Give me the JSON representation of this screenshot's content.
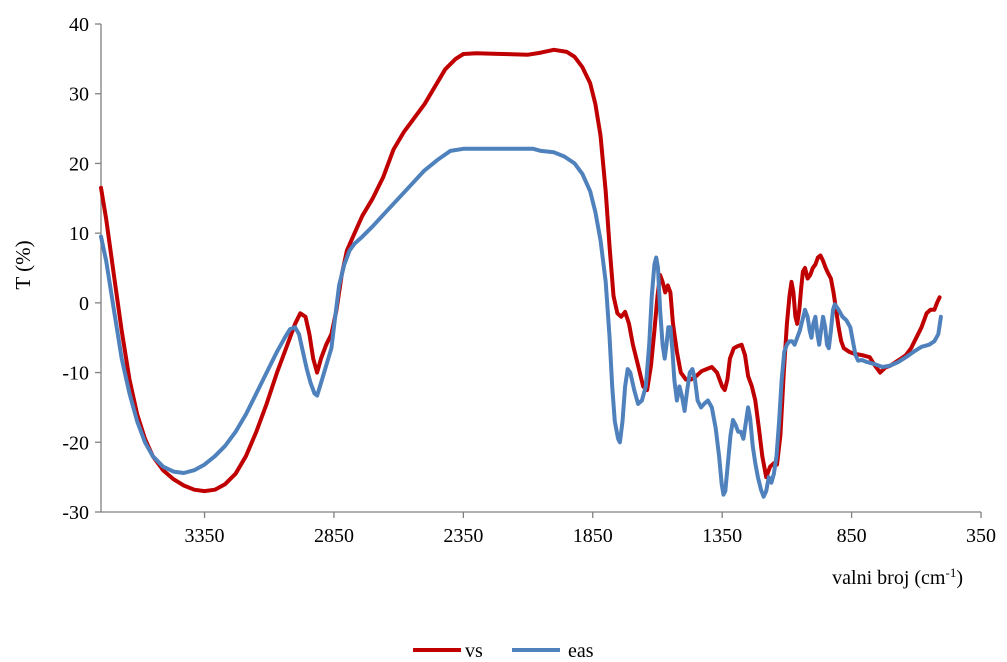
{
  "chart_data": {
    "type": "line",
    "ylabel": "T (%)",
    "xlabel_main": "valni broj (cm",
    "xlabel_sup": "-1",
    "xlabel_end": ")",
    "xlim": [
      3750,
      350
    ],
    "x_reversed": true,
    "ylim": [
      -30,
      40
    ],
    "xticks": [
      3350,
      2850,
      2350,
      1850,
      1350,
      850,
      350
    ],
    "yticks": [
      -30,
      -20,
      -10,
      0,
      10,
      20,
      30,
      40
    ],
    "grid": false,
    "legend": "bottom",
    "series": [
      {
        "name": "vs",
        "color": "#C00000",
        "points": [
          [
            3750,
            16.5
          ],
          [
            3730,
            12
          ],
          [
            3700,
            4
          ],
          [
            3670,
            -4
          ],
          [
            3640,
            -11
          ],
          [
            3610,
            -16
          ],
          [
            3580,
            -19.5
          ],
          [
            3550,
            -22
          ],
          [
            3510,
            -24
          ],
          [
            3470,
            -25.3
          ],
          [
            3430,
            -26.2
          ],
          [
            3390,
            -26.8
          ],
          [
            3350,
            -27
          ],
          [
            3310,
            -26.8
          ],
          [
            3270,
            -26
          ],
          [
            3230,
            -24.5
          ],
          [
            3190,
            -22
          ],
          [
            3150,
            -18.5
          ],
          [
            3110,
            -14.5
          ],
          [
            3070,
            -10
          ],
          [
            3030,
            -6
          ],
          [
            3000,
            -3
          ],
          [
            2980,
            -1.5
          ],
          [
            2960,
            -2
          ],
          [
            2945,
            -4.5
          ],
          [
            2930,
            -8
          ],
          [
            2915,
            -10
          ],
          [
            2900,
            -8
          ],
          [
            2880,
            -6
          ],
          [
            2860,
            -4.5
          ],
          [
            2840,
            -1
          ],
          [
            2820,
            4
          ],
          [
            2800,
            7.5
          ],
          [
            2770,
            10
          ],
          [
            2740,
            12.5
          ],
          [
            2700,
            15
          ],
          [
            2660,
            18
          ],
          [
            2620,
            22
          ],
          [
            2580,
            24.5
          ],
          [
            2540,
            26.5
          ],
          [
            2500,
            28.5
          ],
          [
            2460,
            31
          ],
          [
            2420,
            33.5
          ],
          [
            2380,
            35
          ],
          [
            2350,
            35.7
          ],
          [
            2300,
            35.8
          ],
          [
            2200,
            35.7
          ],
          [
            2100,
            35.6
          ],
          [
            2050,
            35.9
          ],
          [
            2000,
            36.3
          ],
          [
            1950,
            36
          ],
          [
            1920,
            35.3
          ],
          [
            1890,
            33.8
          ],
          [
            1860,
            31.5
          ],
          [
            1840,
            28.5
          ],
          [
            1820,
            24
          ],
          [
            1800,
            16
          ],
          [
            1785,
            8
          ],
          [
            1770,
            1
          ],
          [
            1755,
            -1.5
          ],
          [
            1740,
            -2
          ],
          [
            1725,
            -1.3
          ],
          [
            1710,
            -3
          ],
          [
            1695,
            -6
          ],
          [
            1675,
            -9
          ],
          [
            1655,
            -12
          ],
          [
            1640,
            -12.5
          ],
          [
            1625,
            -9
          ],
          [
            1612,
            -4
          ],
          [
            1600,
            1
          ],
          [
            1590,
            4
          ],
          [
            1580,
            3
          ],
          [
            1570,
            1.5
          ],
          [
            1560,
            2.5
          ],
          [
            1550,
            1.5
          ],
          [
            1540,
            -3
          ],
          [
            1525,
            -7
          ],
          [
            1510,
            -10
          ],
          [
            1490,
            -11
          ],
          [
            1470,
            -11
          ],
          [
            1450,
            -10.5
          ],
          [
            1430,
            -9.8
          ],
          [
            1410,
            -9.5
          ],
          [
            1390,
            -9.2
          ],
          [
            1370,
            -10
          ],
          [
            1350,
            -12
          ],
          [
            1340,
            -12.5
          ],
          [
            1330,
            -11
          ],
          [
            1320,
            -8
          ],
          [
            1305,
            -6.5
          ],
          [
            1290,
            -6.2
          ],
          [
            1275,
            -6
          ],
          [
            1262,
            -7.5
          ],
          [
            1250,
            -10.5
          ],
          [
            1235,
            -12
          ],
          [
            1222,
            -14
          ],
          [
            1208,
            -18
          ],
          [
            1195,
            -22
          ],
          [
            1180,
            -25
          ],
          [
            1165,
            -23.5
          ],
          [
            1150,
            -23
          ],
          [
            1138,
            -23.2
          ],
          [
            1125,
            -19
          ],
          [
            1112,
            -10
          ],
          [
            1100,
            -3
          ],
          [
            1090,
            1
          ],
          [
            1082,
            3
          ],
          [
            1075,
            1.5
          ],
          [
            1067,
            -2
          ],
          [
            1060,
            -3
          ],
          [
            1052,
            -1
          ],
          [
            1045,
            2
          ],
          [
            1038,
            4.5
          ],
          [
            1030,
            5
          ],
          [
            1020,
            3.5
          ],
          [
            1010,
            4
          ],
          [
            1000,
            5
          ],
          [
            990,
            5.5
          ],
          [
            980,
            6.5
          ],
          [
            970,
            6.8
          ],
          [
            960,
            6
          ],
          [
            950,
            5
          ],
          [
            940,
            4.2
          ],
          [
            930,
            3.5
          ],
          [
            920,
            1.5
          ],
          [
            910,
            -1
          ],
          [
            900,
            -3.5
          ],
          [
            890,
            -5.5
          ],
          [
            880,
            -6.5
          ],
          [
            860,
            -7
          ],
          [
            840,
            -7.3
          ],
          [
            810,
            -7.5
          ],
          [
            780,
            -7.8
          ],
          [
            760,
            -9
          ],
          [
            740,
            -10
          ],
          [
            720,
            -9.3
          ],
          [
            700,
            -9
          ],
          [
            680,
            -8.5
          ],
          [
            660,
            -8
          ],
          [
            640,
            -7.5
          ],
          [
            620,
            -6.5
          ],
          [
            600,
            -5
          ],
          [
            580,
            -3.5
          ],
          [
            560,
            -1.5
          ],
          [
            545,
            -1
          ],
          [
            530,
            -1
          ],
          [
            520,
            0
          ],
          [
            510,
            0.8
          ]
        ]
      },
      {
        "name": "eas",
        "color": "#4F81BD",
        "points": [
          [
            3750,
            9.5
          ],
          [
            3730,
            6
          ],
          [
            3700,
            -1
          ],
          [
            3670,
            -8
          ],
          [
            3640,
            -13
          ],
          [
            3610,
            -17
          ],
          [
            3580,
            -20
          ],
          [
            3550,
            -22
          ],
          [
            3510,
            -23.5
          ],
          [
            3470,
            -24.2
          ],
          [
            3430,
            -24.4
          ],
          [
            3390,
            -24
          ],
          [
            3350,
            -23.2
          ],
          [
            3310,
            -22
          ],
          [
            3270,
            -20.5
          ],
          [
            3230,
            -18.5
          ],
          [
            3190,
            -16
          ],
          [
            3150,
            -13
          ],
          [
            3110,
            -10
          ],
          [
            3070,
            -7
          ],
          [
            3040,
            -5
          ],
          [
            3020,
            -3.8
          ],
          [
            3000,
            -3.5
          ],
          [
            2985,
            -4.5
          ],
          [
            2970,
            -7
          ],
          [
            2955,
            -9.5
          ],
          [
            2940,
            -11.5
          ],
          [
            2925,
            -13
          ],
          [
            2915,
            -13.3
          ],
          [
            2900,
            -11.5
          ],
          [
            2880,
            -9
          ],
          [
            2860,
            -6.5
          ],
          [
            2845,
            -2
          ],
          [
            2830,
            2.5
          ],
          [
            2810,
            5.5
          ],
          [
            2790,
            7.5
          ],
          [
            2770,
            8.5
          ],
          [
            2740,
            9.5
          ],
          [
            2700,
            11
          ],
          [
            2650,
            13
          ],
          [
            2600,
            15
          ],
          [
            2550,
            17
          ],
          [
            2500,
            19
          ],
          [
            2450,
            20.5
          ],
          [
            2400,
            21.8
          ],
          [
            2350,
            22.1
          ],
          [
            2250,
            22.1
          ],
          [
            2150,
            22.1
          ],
          [
            2080,
            22.1
          ],
          [
            2050,
            21.8
          ],
          [
            2000,
            21.6
          ],
          [
            1960,
            21
          ],
          [
            1920,
            20
          ],
          [
            1890,
            18.5
          ],
          [
            1860,
            16
          ],
          [
            1840,
            13
          ],
          [
            1820,
            9
          ],
          [
            1800,
            3
          ],
          [
            1785,
            -5
          ],
          [
            1775,
            -12
          ],
          [
            1765,
            -17
          ],
          [
            1752,
            -19.5
          ],
          [
            1745,
            -20
          ],
          [
            1735,
            -17
          ],
          [
            1725,
            -12
          ],
          [
            1715,
            -9.5
          ],
          [
            1705,
            -10
          ],
          [
            1690,
            -12.5
          ],
          [
            1675,
            -14.5
          ],
          [
            1660,
            -14
          ],
          [
            1645,
            -12
          ],
          [
            1632,
            -6
          ],
          [
            1622,
            1
          ],
          [
            1612,
            5.5
          ],
          [
            1605,
            6.5
          ],
          [
            1598,
            5
          ],
          [
            1590,
            -1
          ],
          [
            1580,
            -6
          ],
          [
            1572,
            -8
          ],
          [
            1565,
            -6
          ],
          [
            1558,
            -3.5
          ],
          [
            1550,
            -3.5
          ],
          [
            1542,
            -7
          ],
          [
            1535,
            -11
          ],
          [
            1525,
            -14
          ],
          [
            1515,
            -12
          ],
          [
            1505,
            -13.5
          ],
          [
            1495,
            -15.5
          ],
          [
            1485,
            -12.5
          ],
          [
            1475,
            -10
          ],
          [
            1465,
            -9.5
          ],
          [
            1455,
            -11
          ],
          [
            1445,
            -14
          ],
          [
            1432,
            -15
          ],
          [
            1420,
            -14.5
          ],
          [
            1405,
            -14
          ],
          [
            1390,
            -15
          ],
          [
            1375,
            -18
          ],
          [
            1362,
            -22
          ],
          [
            1352,
            -26
          ],
          [
            1345,
            -27.5
          ],
          [
            1338,
            -27
          ],
          [
            1328,
            -23
          ],
          [
            1318,
            -19
          ],
          [
            1308,
            -16.8
          ],
          [
            1298,
            -17.5
          ],
          [
            1288,
            -18.5
          ],
          [
            1278,
            -18.5
          ],
          [
            1268,
            -19.5
          ],
          [
            1258,
            -17
          ],
          [
            1250,
            -15
          ],
          [
            1242,
            -16.5
          ],
          [
            1232,
            -20.5
          ],
          [
            1222,
            -23
          ],
          [
            1212,
            -25
          ],
          [
            1200,
            -26.8
          ],
          [
            1190,
            -27.8
          ],
          [
            1180,
            -27
          ],
          [
            1170,
            -25
          ],
          [
            1160,
            -25.8
          ],
          [
            1150,
            -24.5
          ],
          [
            1140,
            -22
          ],
          [
            1130,
            -17
          ],
          [
            1120,
            -11
          ],
          [
            1110,
            -7
          ],
          [
            1100,
            -6
          ],
          [
            1090,
            -5.5
          ],
          [
            1080,
            -5.5
          ],
          [
            1070,
            -6
          ],
          [
            1060,
            -5
          ],
          [
            1050,
            -4
          ],
          [
            1040,
            -2.5
          ],
          [
            1030,
            -1
          ],
          [
            1020,
            -2
          ],
          [
            1012,
            -4
          ],
          [
            1005,
            -5
          ],
          [
            998,
            -3
          ],
          [
            990,
            -2
          ],
          [
            982,
            -4.5
          ],
          [
            975,
            -6
          ],
          [
            968,
            -4
          ],
          [
            960,
            -2
          ],
          [
            952,
            -3.5
          ],
          [
            945,
            -6
          ],
          [
            938,
            -6.5
          ],
          [
            930,
            -4
          ],
          [
            922,
            -1
          ],
          [
            915,
            -0.2
          ],
          [
            900,
            -1
          ],
          [
            885,
            -2
          ],
          [
            870,
            -2.5
          ],
          [
            855,
            -3.5
          ],
          [
            845,
            -5.5
          ],
          [
            835,
            -7.5
          ],
          [
            825,
            -8.3
          ],
          [
            810,
            -8.2
          ],
          [
            790,
            -8.5
          ],
          [
            760,
            -8.8
          ],
          [
            730,
            -9.2
          ],
          [
            700,
            -9
          ],
          [
            670,
            -8.5
          ],
          [
            640,
            -7.8
          ],
          [
            610,
            -7
          ],
          [
            580,
            -6.3
          ],
          [
            550,
            -6
          ],
          [
            530,
            -5.5
          ],
          [
            515,
            -4.5
          ],
          [
            505,
            -2
          ]
        ]
      }
    ]
  }
}
